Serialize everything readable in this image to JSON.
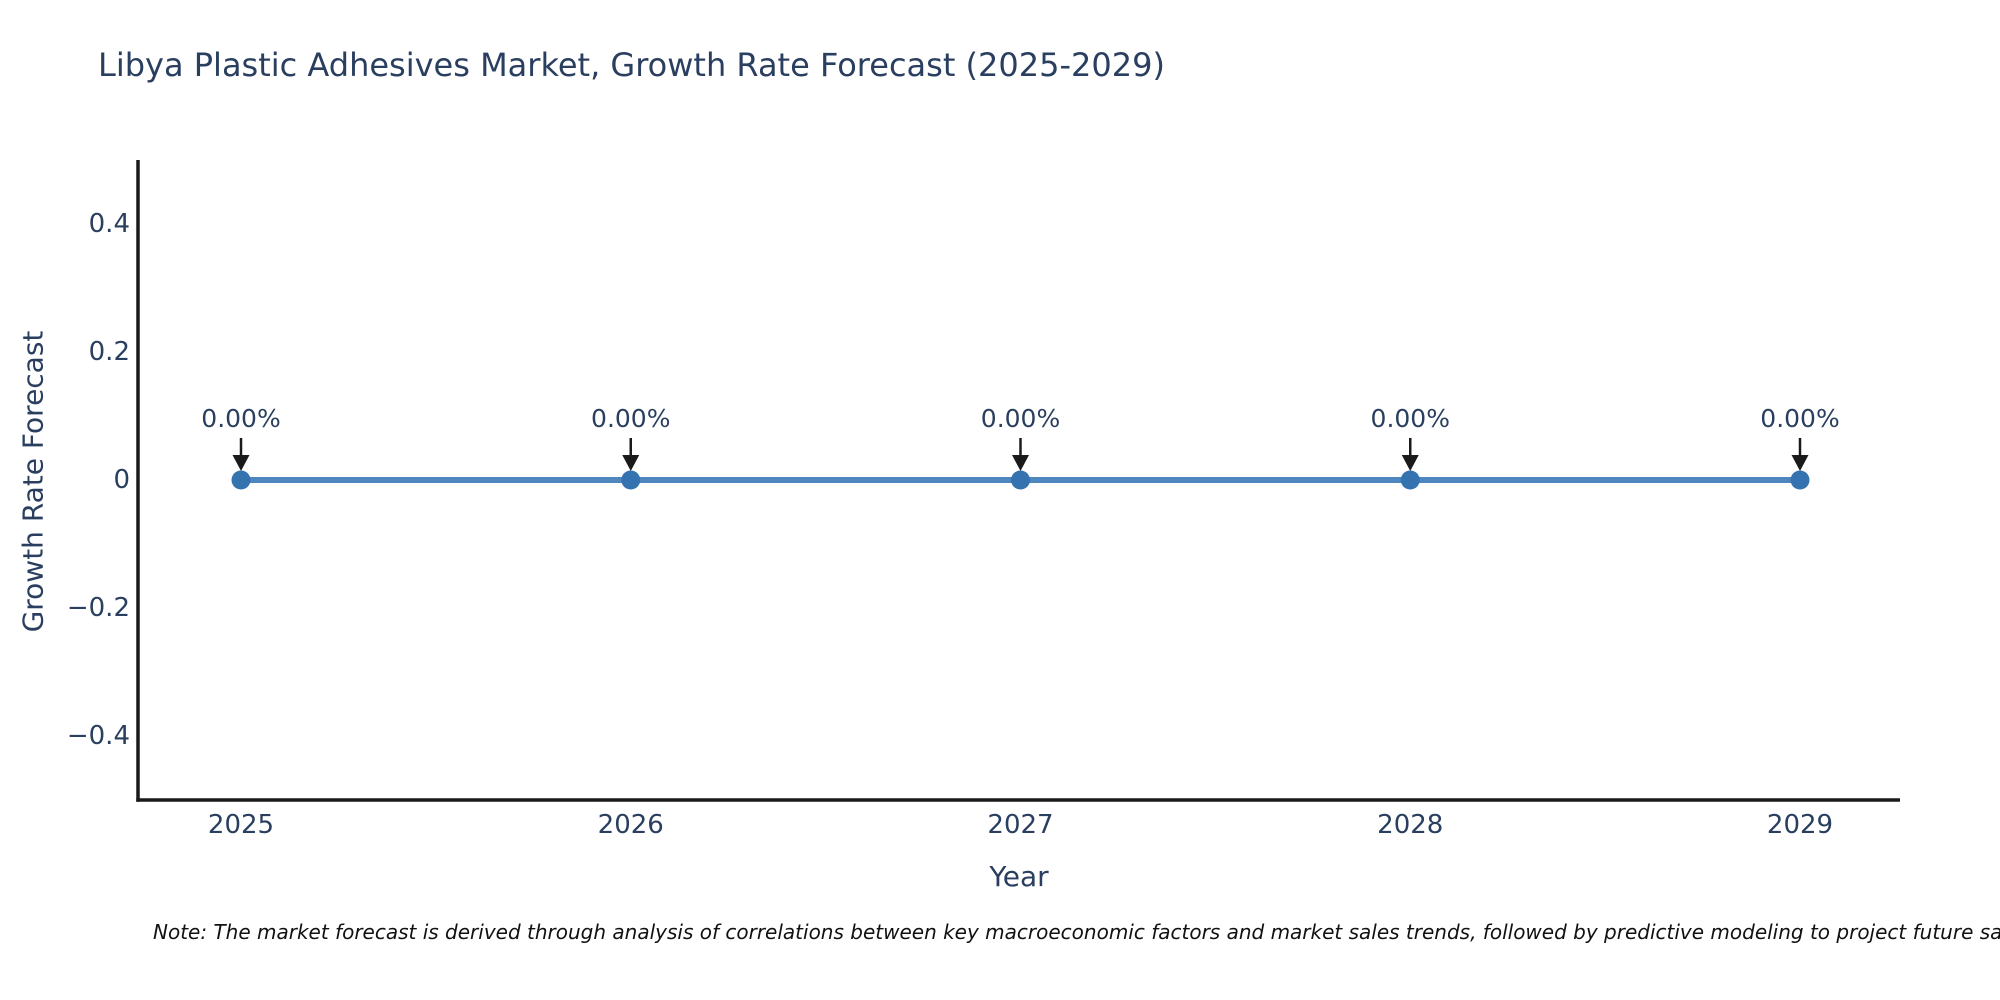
{
  "title": "Libya Plastic Adhesives Market, Growth Rate Forecast (2025-2029)",
  "note": "Note: The market forecast is derived through analysis of correlations between key macroeconomic factors and market sales trends, followed by predictive modeling to project future sa",
  "chart_data": {
    "type": "line",
    "title": "Libya Plastic Adhesives Market, Growth Rate Forecast (2025-2029)",
    "xlabel": "Year",
    "ylabel": "Growth Rate Forecast",
    "x": [
      2025,
      2026,
      2027,
      2028,
      2029
    ],
    "x_tick_labels": [
      "2025",
      "2026",
      "2027",
      "2028",
      "2029"
    ],
    "values": [
      0,
      0,
      0,
      0,
      0
    ],
    "point_labels": [
      "0.00%",
      "0.00%",
      "0.00%",
      "0.00%",
      "0.00%"
    ],
    "ylim": [
      -0.5,
      0.5
    ],
    "yticks": [
      0.4,
      0.2,
      0,
      -0.2,
      -0.4
    ],
    "ytick_labels": [
      "0.4",
      "0.2",
      "0",
      "−0.2",
      "−0.4"
    ],
    "grid": false,
    "legend": "none",
    "colors": {
      "line": "#4d87bd",
      "marker": "#3572b0",
      "axis": "#1a1a1a",
      "arrow": "#1a1a1a",
      "text": "#2a3f5f",
      "background": "#ffffff"
    }
  }
}
